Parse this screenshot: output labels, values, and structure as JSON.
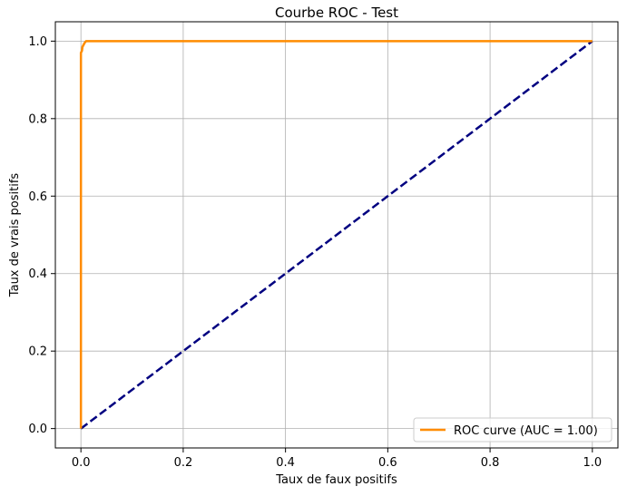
{
  "chart_data": {
    "type": "line",
    "title": "Courbe ROC - Test",
    "xlabel": "Taux de faux positifs",
    "ylabel": "Taux de vrais positifs",
    "xlim": [
      -0.05,
      1.05
    ],
    "ylim": [
      -0.05,
      1.05
    ],
    "xticks": [
      "0.0",
      "0.2",
      "0.4",
      "0.6",
      "0.8",
      "1.0"
    ],
    "yticks": [
      "0.0",
      "0.2",
      "0.4",
      "0.6",
      "0.8",
      "1.0"
    ],
    "grid": true,
    "legend_position": "lower-right",
    "series": [
      {
        "name": "ROC curve (AUC = 1.00)",
        "color": "#ff8c00",
        "style": "solid",
        "x": [
          0.0,
          0.0,
          0.002,
          0.003,
          0.005,
          0.007,
          0.01,
          0.02,
          0.05,
          0.2,
          0.5,
          1.0
        ],
        "y": [
          0.0,
          0.97,
          0.975,
          0.985,
          0.99,
          0.995,
          1.0,
          1.0,
          1.0,
          1.0,
          1.0,
          1.0
        ]
      },
      {
        "color": "#000080",
        "style": "dashed",
        "x": [
          0.0,
          1.0
        ],
        "y": [
          0.0,
          1.0
        ]
      }
    ]
  }
}
